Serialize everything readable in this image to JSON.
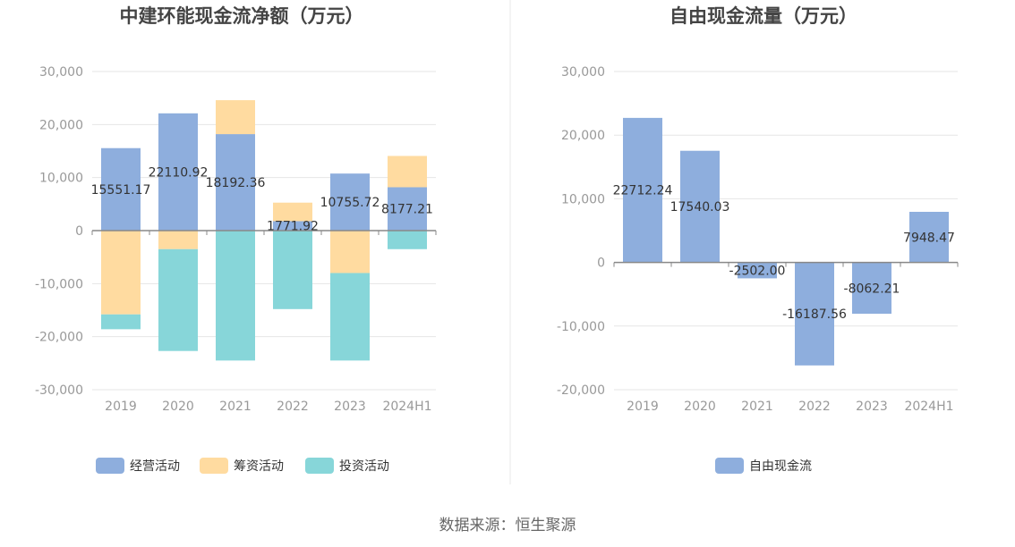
{
  "source_text": "数据来源：恒生聚源",
  "chart_data": [
    {
      "type": "bar",
      "stacked": true,
      "title": "中建环能现金流净额（万元）",
      "categories": [
        "2019",
        "2020",
        "2021",
        "2022",
        "2023",
        "2024H1"
      ],
      "ylim": [
        -30000,
        30000
      ],
      "yticks": [
        30000,
        20000,
        10000,
        0,
        -10000,
        -20000,
        -30000
      ],
      "ytick_labels": [
        "30,000",
        "20,000",
        "10,000",
        "0",
        "-10,000",
        "-20,000",
        "-30,000"
      ],
      "grid": true,
      "legend_position": "bottom",
      "series": [
        {
          "name": "经营活动",
          "color": "#8eaedd",
          "values": [
            15551.17,
            22110.92,
            18192.36,
            1771.92,
            10755.72,
            8177.21
          ],
          "labels": [
            "15551.17",
            "22110.92",
            "18192.36",
            "1771.92",
            "10755.72",
            "8177.21"
          ]
        },
        {
          "name": "筹资活动",
          "color": "#ffdba0",
          "values": [
            -15800,
            -3500,
            6400,
            3500,
            -8000,
            5900
          ]
        },
        {
          "name": "投资活动",
          "color": "#87d6d9",
          "values": [
            -2800,
            -19200,
            -24500,
            -14800,
            -16500,
            -3500
          ]
        }
      ]
    },
    {
      "type": "bar",
      "title": "自由现金流量（万元）",
      "categories": [
        "2019",
        "2020",
        "2021",
        "2022",
        "2023",
        "2024H1"
      ],
      "ylim": [
        -20000,
        30000
      ],
      "yticks": [
        30000,
        20000,
        10000,
        0,
        -10000,
        -20000
      ],
      "ytick_labels": [
        "30,000",
        "20,000",
        "10,000",
        "0",
        "-10,000",
        "-20,000"
      ],
      "grid": true,
      "legend_position": "bottom",
      "series": [
        {
          "name": "自由现金流",
          "color": "#8eaedd",
          "values": [
            22712.24,
            17540.03,
            -2502.0,
            -16187.56,
            -8062.21,
            7948.47
          ],
          "labels": [
            "22712.24",
            "17540.03",
            "-2502.00",
            "-16187.56",
            "-8062.21",
            "7948.47"
          ]
        }
      ]
    }
  ]
}
